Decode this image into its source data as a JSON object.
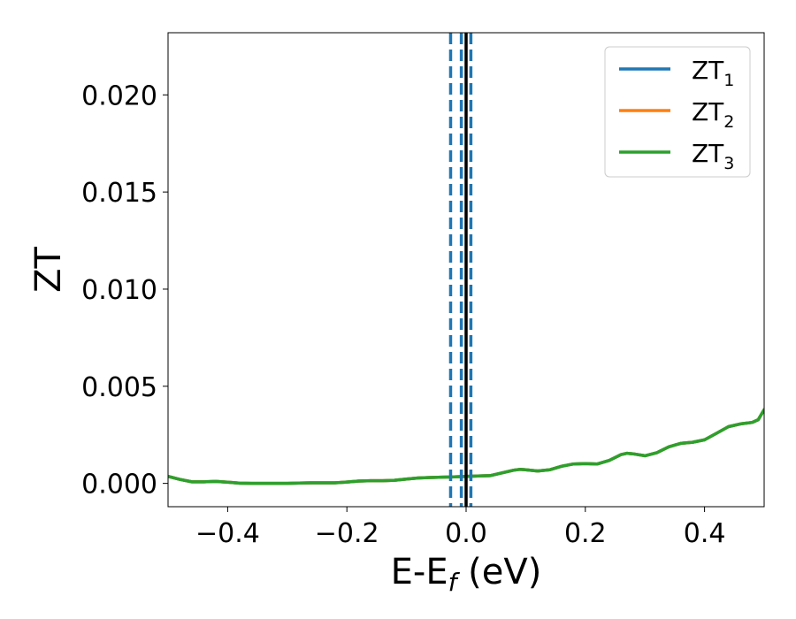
{
  "chart_data": {
    "type": "line",
    "xlabel": {
      "main": "E-E",
      "sub": "f",
      "suffix": " (eV)"
    },
    "ylabel": "ZT",
    "xlim": [
      -0.5,
      0.5
    ],
    "ylim": [
      -0.0012,
      0.0232
    ],
    "xticks": [
      -0.4,
      -0.2,
      0.0,
      0.2,
      0.4
    ],
    "xtick_labels": [
      "−0.4",
      "−0.2",
      "0.0",
      "0.2",
      "0.4"
    ],
    "yticks": [
      0.0,
      0.005,
      0.01,
      0.015,
      0.02
    ],
    "ytick_labels": [
      "0.000",
      "0.005",
      "0.010",
      "0.015",
      "0.020"
    ],
    "grid": false,
    "legend_position": "top-right",
    "x": [
      -0.5,
      -0.48,
      -0.46,
      -0.44,
      -0.42,
      -0.4,
      -0.38,
      -0.36,
      -0.34,
      -0.32,
      -0.3,
      -0.28,
      -0.26,
      -0.24,
      -0.22,
      -0.2,
      -0.18,
      -0.16,
      -0.14,
      -0.12,
      -0.1,
      -0.08,
      -0.06,
      -0.04,
      -0.02,
      0.0,
      0.02,
      0.04,
      0.06,
      0.08,
      0.09,
      0.1,
      0.12,
      0.14,
      0.16,
      0.18,
      0.2,
      0.22,
      0.24,
      0.26,
      0.27,
      0.28,
      0.3,
      0.32,
      0.34,
      0.36,
      0.38,
      0.4,
      0.42,
      0.44,
      0.46,
      0.48,
      0.49,
      0.5
    ],
    "series": [
      {
        "name": "ZT",
        "sub": "1",
        "color": "#1f77b4",
        "values": [
          0.00036,
          0.0002,
          8e-05,
          8e-05,
          0.0001,
          6e-05,
          1e-05,
          0.0,
          0.0,
          0.0,
          0.0,
          2e-05,
          3e-05,
          3e-05,
          3e-05,
          7e-05,
          0.00012,
          0.00014,
          0.00014,
          0.00016,
          0.00022,
          0.00028,
          0.0003,
          0.00032,
          0.00034,
          0.00036,
          0.00038,
          0.0004,
          0.00054,
          0.00068,
          0.00072,
          0.0007,
          0.00064,
          0.0007,
          0.00088,
          0.001,
          0.00102,
          0.001,
          0.00118,
          0.00148,
          0.00155,
          0.00152,
          0.00142,
          0.00158,
          0.00188,
          0.00206,
          0.00212,
          0.00224,
          0.00258,
          0.00292,
          0.00306,
          0.00314,
          0.00328,
          0.0038
        ]
      },
      {
        "name": "ZT",
        "sub": "2",
        "color": "#ff7f0e",
        "values": [
          0.00036,
          0.0002,
          8e-05,
          8e-05,
          0.0001,
          6e-05,
          1e-05,
          0.0,
          0.0,
          0.0,
          0.0,
          2e-05,
          3e-05,
          3e-05,
          3e-05,
          7e-05,
          0.00012,
          0.00014,
          0.00014,
          0.00016,
          0.00022,
          0.00028,
          0.0003,
          0.00032,
          0.00034,
          0.00036,
          0.00038,
          0.0004,
          0.00054,
          0.00068,
          0.00072,
          0.0007,
          0.00064,
          0.0007,
          0.00088,
          0.001,
          0.00102,
          0.001,
          0.00118,
          0.00148,
          0.00155,
          0.00152,
          0.00142,
          0.00158,
          0.00188,
          0.00206,
          0.00212,
          0.00224,
          0.00258,
          0.00292,
          0.00306,
          0.00314,
          0.00328,
          0.0038
        ]
      },
      {
        "name": "ZT",
        "sub": "3",
        "color": "#2ca02c",
        "values": [
          0.00036,
          0.0002,
          8e-05,
          8e-05,
          0.0001,
          6e-05,
          1e-05,
          0.0,
          0.0,
          0.0,
          0.0,
          2e-05,
          3e-05,
          3e-05,
          3e-05,
          7e-05,
          0.00012,
          0.00014,
          0.00014,
          0.00016,
          0.00022,
          0.00028,
          0.0003,
          0.00032,
          0.00034,
          0.00036,
          0.00038,
          0.0004,
          0.00054,
          0.00068,
          0.00072,
          0.0007,
          0.00064,
          0.0007,
          0.00088,
          0.001,
          0.00102,
          0.001,
          0.00118,
          0.00148,
          0.00155,
          0.00152,
          0.00142,
          0.00158,
          0.00188,
          0.00206,
          0.00212,
          0.00224,
          0.00258,
          0.00292,
          0.00306,
          0.00314,
          0.00328,
          0.0038
        ]
      }
    ],
    "vlines": [
      {
        "x": -0.026,
        "style": "dashed",
        "color": "#1f77b4"
      },
      {
        "x": -0.008,
        "style": "dashed",
        "color": "#1f77b4"
      },
      {
        "x": 0.008,
        "style": "dashed",
        "color": "#1f77b4"
      },
      {
        "x": 0.0,
        "style": "solid",
        "color": "#000000"
      }
    ]
  }
}
